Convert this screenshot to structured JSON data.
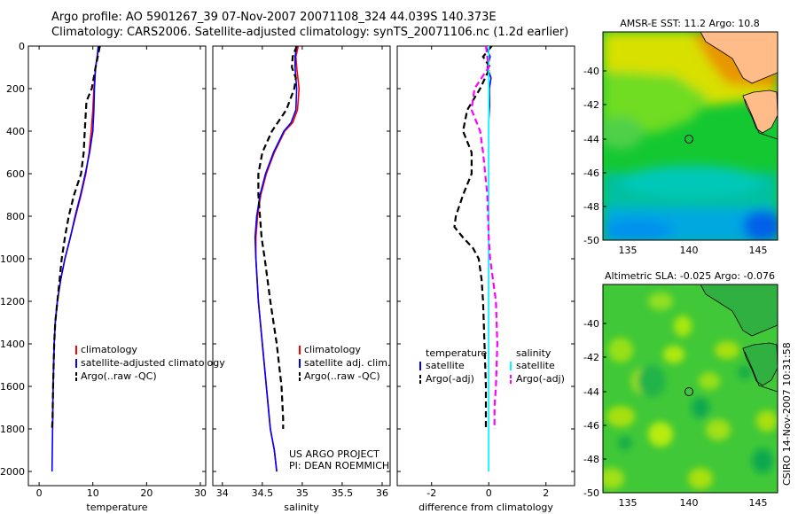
{
  "header": {
    "line1": "Argo profile: AO 5901267_39 07-Nov-2007 20071108_324 44.039S 140.373E",
    "line2": "Climatology: CARS2006. Satellite-adjusted climatology: synTS_20071106.nc (1.2d earlier)"
  },
  "side_label": "CSIRO 14-Nov-2007 10:31:58",
  "colors": {
    "clim": "#ff0000",
    "sat": "#0000ff",
    "argo": "#000000",
    "sal_diff": "#ff00ff",
    "sat_diff": "#00ffff"
  },
  "chart_data": [
    {
      "type": "line",
      "xlabel": "temperature",
      "ylabel": "",
      "xlim": [
        -2,
        31
      ],
      "ylim": [
        2050,
        0
      ],
      "xticks": [
        "0",
        "10",
        "20",
        "30"
      ],
      "yticks": [
        "0",
        "200",
        "400",
        "600",
        "800",
        "1000",
        "1200",
        "1400",
        "1600",
        "1800",
        "2000"
      ],
      "legend": [
        "climatology",
        "satellite-adjusted climatology",
        "Argo(..raw -QC)"
      ],
      "series": [
        {
          "name": "climatology",
          "color": "red",
          "style": "solid",
          "x": [
            11.2,
            10.8,
            10.5,
            10.2,
            10.0,
            9.7,
            9.3,
            8.7,
            7.8,
            6.8,
            5.8,
            4.8,
            4.0,
            3.4,
            3.0,
            2.8,
            2.7,
            2.6,
            2.5
          ],
          "y": [
            0,
            50,
            100,
            200,
            300,
            400,
            500,
            600,
            700,
            800,
            900,
            1000,
            1100,
            1200,
            1300,
            1400,
            1500,
            1600,
            1800
          ]
        },
        {
          "name": "satellite-adjusted climatology",
          "color": "blue",
          "style": "solid",
          "x": [
            11.0,
            10.8,
            10.5,
            10.3,
            10.2,
            10.0,
            9.4,
            8.6,
            7.7,
            6.7,
            5.8,
            4.8,
            4.0,
            3.4,
            3.0,
            2.8,
            2.7,
            2.6,
            2.5,
            2.4
          ],
          "y": [
            0,
            50,
            100,
            200,
            300,
            400,
            500,
            600,
            700,
            800,
            900,
            1000,
            1100,
            1200,
            1300,
            1400,
            1500,
            1600,
            1800,
            2000
          ]
        },
        {
          "name": "Argo(..raw -QC)",
          "color": "black",
          "style": "dashed",
          "x": [
            11.3,
            10.9,
            10.5,
            9.8,
            8.8,
            8.5,
            8.3,
            7.8,
            6.5,
            5.5,
            4.8,
            4.2,
            3.8,
            3.4,
            3.0,
            2.8,
            2.7,
            2.6,
            2.5,
            2.4
          ],
          "y": [
            0,
            50,
            100,
            200,
            260,
            400,
            500,
            600,
            700,
            800,
            900,
            1000,
            1100,
            1200,
            1300,
            1400,
            1500,
            1600,
            1750,
            1800
          ]
        }
      ]
    },
    {
      "type": "line",
      "xlabel": "salinity",
      "ylabel": "",
      "xlim": [
        33.88,
        36.1
      ],
      "ylim": [
        2050,
        0
      ],
      "xticks": [
        "34",
        "34.5",
        "35",
        "35.5",
        "36"
      ],
      "legend": [
        "climatology",
        "satellite adj. clim.",
        "Argo(..raw -QC)"
      ],
      "annotation": [
        "US ARGO PROJECT",
        "PI: DEAN ROEMMICH"
      ],
      "series": [
        {
          "name": "climatology",
          "color": "red",
          "style": "solid",
          "x": [
            34.95,
            34.92,
            34.93,
            34.96,
            34.94,
            34.88,
            34.78,
            34.65,
            34.55,
            34.48,
            34.44,
            34.42,
            34.42,
            34.45,
            34.5,
            34.55,
            34.6,
            34.65,
            34.68
          ],
          "y": [
            0,
            50,
            100,
            200,
            300,
            360,
            400,
            500,
            600,
            700,
            800,
            900,
            1000,
            1200,
            1400,
            1600,
            1800,
            1900,
            2000
          ]
        },
        {
          "name": "satellite adj. clim.",
          "color": "blue",
          "style": "solid",
          "x": [
            34.93,
            34.91,
            34.91,
            34.93,
            34.92,
            34.86,
            34.77,
            34.64,
            34.54,
            34.47,
            34.43,
            34.41,
            34.42,
            34.45,
            34.5,
            34.55,
            34.6,
            34.65,
            34.68
          ],
          "y": [
            0,
            50,
            100,
            200,
            300,
            360,
            400,
            500,
            600,
            700,
            800,
            900,
            1000,
            1200,
            1400,
            1600,
            1800,
            1900,
            2000
          ]
        },
        {
          "name": "Argo(..raw -QC)",
          "color": "black",
          "style": "dashed",
          "x": [
            34.93,
            34.88,
            34.87,
            34.92,
            34.9,
            34.8,
            34.62,
            34.5,
            34.45,
            34.45,
            34.47,
            34.49,
            34.53,
            34.6,
            34.68,
            34.74,
            34.76,
            34.76
          ],
          "y": [
            0,
            50,
            100,
            150,
            200,
            300,
            400,
            500,
            600,
            700,
            800,
            900,
            1000,
            1200,
            1400,
            1600,
            1750,
            1800
          ]
        }
      ]
    },
    {
      "type": "line",
      "xlabel": "difference from climatology",
      "ylabel": "",
      "xlim": [
        -3.2,
        3.0
      ],
      "ylim": [
        2050,
        0
      ],
      "xticks": [
        "-2",
        "0",
        "2"
      ],
      "legend_left": {
        "title": "temperature",
        "items": [
          "satellite",
          "Argo(-adj)"
        ]
      },
      "legend_right": {
        "title": "salinity",
        "items": [
          "satellite",
          "Argo(-adj)"
        ]
      },
      "series": [
        {
          "name": "satellite (temperature)",
          "color": "blue",
          "style": "solid",
          "x": [
            -0.1,
            0.05,
            -0.05,
            0.08,
            0.02,
            0.03,
            0.0,
            0.0,
            0.0,
            0.0,
            0.0
          ],
          "y": [
            0,
            50,
            100,
            150,
            200,
            280,
            350,
            400,
            800,
            1200,
            2000
          ]
        },
        {
          "name": "Argo(-adj) (temperature)",
          "color": "black",
          "style": "dashed",
          "x": [
            0.1,
            -0.2,
            0.05,
            -0.3,
            -0.75,
            -0.9,
            -0.6,
            -0.6,
            -0.9,
            -1.15,
            -1.2,
            -0.9,
            -0.55,
            -0.35,
            -0.25,
            -0.2,
            -0.15,
            -0.1,
            -0.1,
            -0.1
          ],
          "y": [
            0,
            50,
            100,
            200,
            300,
            400,
            500,
            600,
            700,
            800,
            850,
            900,
            950,
            1000,
            1100,
            1200,
            1400,
            1600,
            1700,
            1800
          ]
        },
        {
          "name": "salinity satellite",
          "color": "cyan",
          "style": "solid",
          "x": [
            0.0,
            0.0,
            0.0,
            0.0,
            0.0
          ],
          "y": [
            0,
            500,
            1000,
            1500,
            2000
          ]
        },
        {
          "name": "salinity Argo(-adj)",
          "color": "magenta",
          "style": "dashed",
          "x": [
            -0.1,
            -0.05,
            0.0,
            -0.5,
            -0.6,
            -0.3,
            -0.2,
            -0.05,
            0.0,
            0.05,
            0.25,
            0.3,
            0.25,
            0.2,
            0.2
          ],
          "y": [
            0,
            50,
            100,
            200,
            300,
            400,
            500,
            700,
            900,
            1000,
            1200,
            1400,
            1600,
            1700,
            1800
          ]
        }
      ]
    },
    {
      "type": "heatmap",
      "title": "AMSR-E SST: 11.2 Argo: 10.8",
      "xlim": [
        133.5,
        147.5
      ],
      "ylim": [
        -50,
        -38.7
      ],
      "xticks": [
        "135",
        "140",
        "145"
      ],
      "yticks": [
        "-40",
        "-42",
        "-44",
        "-46",
        "-48",
        "-50"
      ],
      "marker": {
        "lon": 140.373,
        "lat": -44.039
      }
    },
    {
      "type": "heatmap",
      "title": "Altimetric SLA: -0.025 Argo: -0.076",
      "xlim": [
        133.5,
        147.5
      ],
      "ylim": [
        -50,
        -38.7
      ],
      "xticks": [
        "135",
        "140",
        "145"
      ],
      "yticks": [
        "-40",
        "-42",
        "-44",
        "-46",
        "-48",
        "-50"
      ],
      "marker": {
        "lon": 140.373,
        "lat": -44.039
      }
    }
  ]
}
